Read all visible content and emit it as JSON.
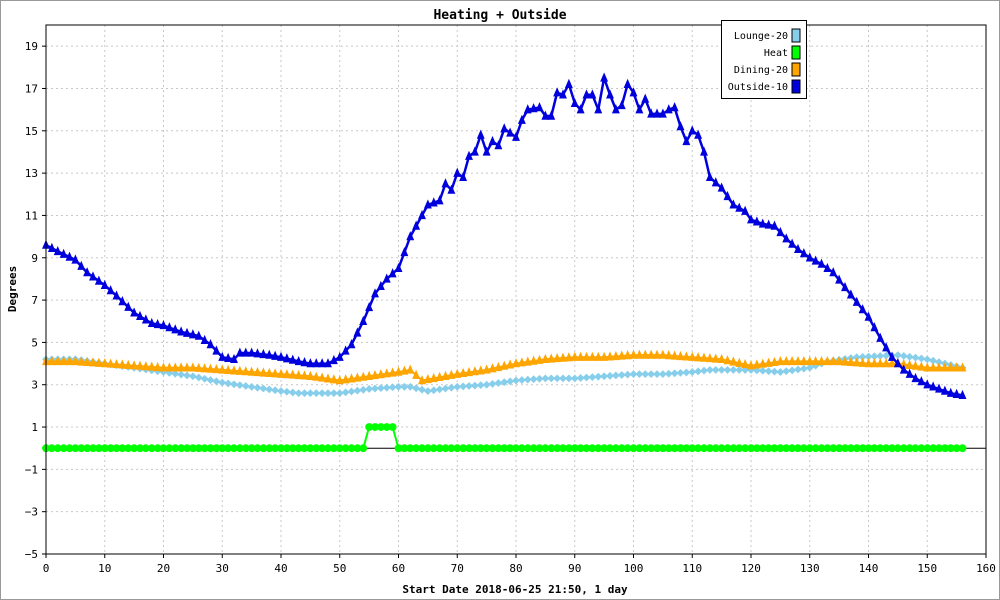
{
  "chart_data": {
    "type": "line",
    "title": "Heating + Outside",
    "xlabel": "Start Date 2018-06-25 21:50, 1 day",
    "ylabel": "Degrees",
    "xlim": [
      0,
      160
    ],
    "ylim": [
      -5,
      20
    ],
    "x_ticks": [
      0,
      10,
      20,
      30,
      40,
      50,
      60,
      70,
      80,
      90,
      100,
      110,
      120,
      130,
      140,
      150,
      160
    ],
    "y_ticks": [
      -5,
      -3,
      -1,
      1,
      3,
      5,
      7,
      9,
      11,
      13,
      15,
      17,
      19
    ],
    "grid": true,
    "legend_position": "top-right",
    "series": [
      {
        "name": "Lounge-20",
        "color": "#87ceeb",
        "marker": "diamond",
        "points": [
          [
            0,
            4.2
          ],
          [
            5,
            4.2
          ],
          [
            10,
            4.0
          ],
          [
            15,
            3.8
          ],
          [
            20,
            3.6
          ],
          [
            25,
            3.4
          ],
          [
            30,
            3.1
          ],
          [
            35,
            2.9
          ],
          [
            40,
            2.7
          ],
          [
            43,
            2.6
          ],
          [
            50,
            2.6
          ],
          [
            55,
            2.8
          ],
          [
            60,
            2.9
          ],
          [
            62,
            2.9
          ],
          [
            65,
            2.7
          ],
          [
            70,
            2.9
          ],
          [
            75,
            3.0
          ],
          [
            80,
            3.2
          ],
          [
            85,
            3.3
          ],
          [
            90,
            3.3
          ],
          [
            95,
            3.4
          ],
          [
            100,
            3.5
          ],
          [
            105,
            3.5
          ],
          [
            110,
            3.6
          ],
          [
            113,
            3.7
          ],
          [
            120,
            3.7
          ],
          [
            125,
            3.6
          ],
          [
            130,
            3.8
          ],
          [
            133,
            4.1
          ],
          [
            138,
            4.3
          ],
          [
            145,
            4.4
          ],
          [
            150,
            4.2
          ],
          [
            156,
            3.8
          ]
        ]
      },
      {
        "name": "Heat",
        "color": "#00ff00",
        "marker": "circle",
        "points": [
          [
            0,
            0
          ],
          [
            54,
            0
          ],
          [
            55,
            1
          ],
          [
            59,
            1
          ],
          [
            60,
            0
          ],
          [
            156,
            0
          ]
        ]
      },
      {
        "name": "Dining-20",
        "color": "#ffa500",
        "marker": "triangle",
        "points": [
          [
            0,
            4.1
          ],
          [
            5,
            4.1
          ],
          [
            10,
            4.0
          ],
          [
            15,
            3.9
          ],
          [
            20,
            3.8
          ],
          [
            25,
            3.8
          ],
          [
            30,
            3.7
          ],
          [
            35,
            3.6
          ],
          [
            40,
            3.5
          ],
          [
            45,
            3.4
          ],
          [
            50,
            3.2
          ],
          [
            55,
            3.4
          ],
          [
            60,
            3.6
          ],
          [
            62,
            3.7
          ],
          [
            64,
            3.2
          ],
          [
            70,
            3.5
          ],
          [
            75,
            3.7
          ],
          [
            80,
            4.0
          ],
          [
            85,
            4.2
          ],
          [
            90,
            4.3
          ],
          [
            95,
            4.3
          ],
          [
            100,
            4.4
          ],
          [
            105,
            4.4
          ],
          [
            110,
            4.3
          ],
          [
            115,
            4.2
          ],
          [
            120,
            3.9
          ],
          [
            125,
            4.1
          ],
          [
            130,
            4.1
          ],
          [
            135,
            4.1
          ],
          [
            140,
            4.0
          ],
          [
            145,
            4.0
          ],
          [
            150,
            3.8
          ],
          [
            156,
            3.8
          ]
        ]
      },
      {
        "name": "Outside-10",
        "color": "#0000dd",
        "marker": "triangle",
        "points": [
          [
            0,
            9.6
          ],
          [
            2,
            9.3
          ],
          [
            5,
            8.9
          ],
          [
            7,
            8.3
          ],
          [
            10,
            7.7
          ],
          [
            12,
            7.2
          ],
          [
            15,
            6.4
          ],
          [
            18,
            5.9
          ],
          [
            20,
            5.8
          ],
          [
            23,
            5.5
          ],
          [
            26,
            5.3
          ],
          [
            28,
            4.9
          ],
          [
            30,
            4.3
          ],
          [
            32,
            4.2
          ],
          [
            33,
            4.5
          ],
          [
            35,
            4.5
          ],
          [
            38,
            4.4
          ],
          [
            40,
            4.3
          ],
          [
            43,
            4.1
          ],
          [
            45,
            4.0
          ],
          [
            47,
            4.0
          ],
          [
            48,
            4.0
          ],
          [
            50,
            4.3
          ],
          [
            52,
            4.9
          ],
          [
            54,
            6.0
          ],
          [
            56,
            7.3
          ],
          [
            58,
            8.0
          ],
          [
            60,
            8.5
          ],
          [
            62,
            10.0
          ],
          [
            64,
            11.0
          ],
          [
            65,
            11.5
          ],
          [
            67,
            11.7
          ],
          [
            68,
            12.5
          ],
          [
            69,
            12.2
          ],
          [
            70,
            13.0
          ],
          [
            71,
            12.8
          ],
          [
            72,
            13.8
          ],
          [
            73,
            14.0
          ],
          [
            74,
            14.8
          ],
          [
            75,
            14.0
          ],
          [
            76,
            14.5
          ],
          [
            77,
            14.3
          ],
          [
            78,
            15.1
          ],
          [
            80,
            14.7
          ],
          [
            81,
            15.5
          ],
          [
            82,
            16.0
          ],
          [
            84,
            16.1
          ],
          [
            85,
            15.7
          ],
          [
            86,
            15.7
          ],
          [
            87,
            16.8
          ],
          [
            88,
            16.7
          ],
          [
            89,
            17.2
          ],
          [
            90,
            16.3
          ],
          [
            91,
            16.0
          ],
          [
            92,
            16.7
          ],
          [
            93,
            16.7
          ],
          [
            94,
            16.0
          ],
          [
            95,
            17.5
          ],
          [
            96,
            16.7
          ],
          [
            97,
            16.0
          ],
          [
            98,
            16.2
          ],
          [
            99,
            17.2
          ],
          [
            100,
            16.8
          ],
          [
            101,
            16.0
          ],
          [
            102,
            16.5
          ],
          [
            103,
            15.8
          ],
          [
            105,
            15.8
          ],
          [
            106,
            16.0
          ],
          [
            107,
            16.1
          ],
          [
            108,
            15.2
          ],
          [
            109,
            14.5
          ],
          [
            110,
            15.0
          ],
          [
            111,
            14.8
          ],
          [
            112,
            14.0
          ],
          [
            113,
            12.8
          ],
          [
            115,
            12.3
          ],
          [
            117,
            11.5
          ],
          [
            119,
            11.2
          ],
          [
            120,
            10.8
          ],
          [
            122,
            10.6
          ],
          [
            124,
            10.5
          ],
          [
            126,
            9.9
          ],
          [
            128,
            9.4
          ],
          [
            130,
            9.0
          ],
          [
            132,
            8.7
          ],
          [
            134,
            8.3
          ],
          [
            136,
            7.6
          ],
          [
            138,
            6.9
          ],
          [
            140,
            6.2
          ],
          [
            142,
            5.2
          ],
          [
            144,
            4.3
          ],
          [
            146,
            3.7
          ],
          [
            148,
            3.3
          ],
          [
            150,
            3.0
          ],
          [
            152,
            2.8
          ],
          [
            154,
            2.6
          ],
          [
            156,
            2.5
          ]
        ]
      }
    ]
  }
}
